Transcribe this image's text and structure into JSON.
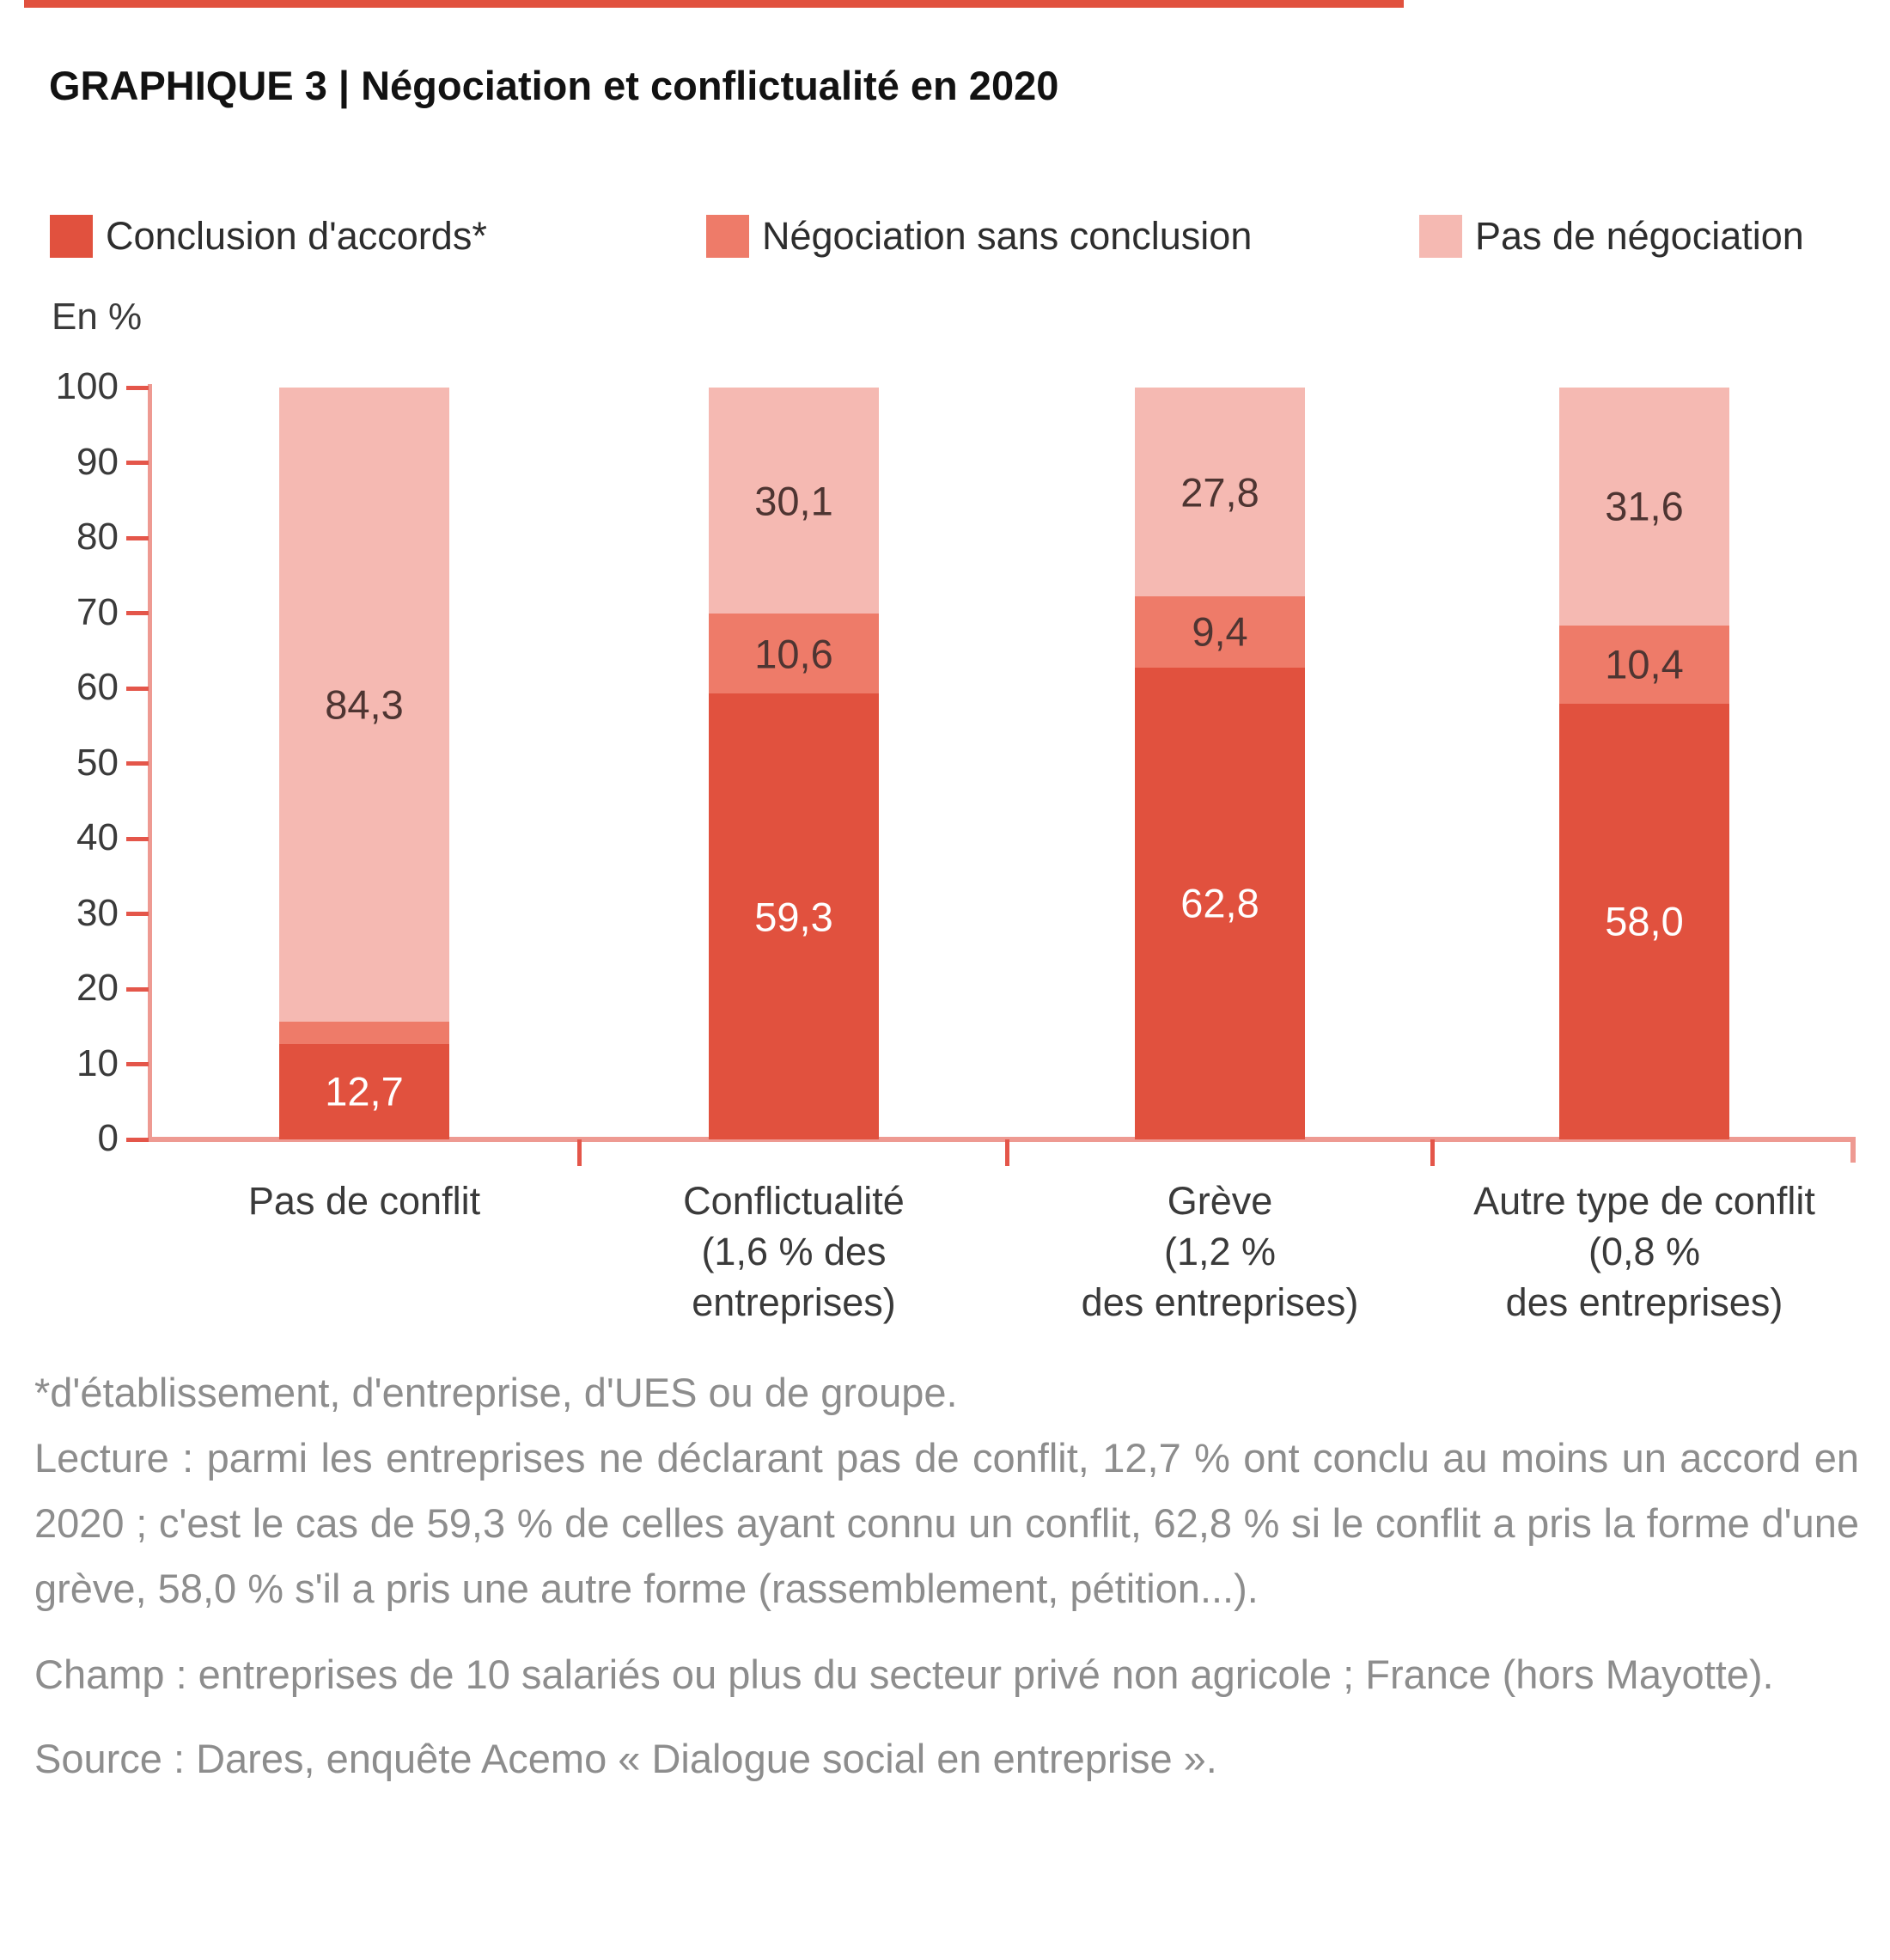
{
  "title": "GRAPHIQUE 3 | Négociation et conflictualité en 2020",
  "accent_colors": {
    "dark_red": "#e1513e",
    "coral": "#ee7b69",
    "pink": "#f5b9b2",
    "axis_line": "#ee9a92",
    "tick_red": "#e4564a",
    "dark_label": "#4e3532",
    "white_label": "#ffffff"
  },
  "legend": [
    {
      "label": "Conclusion d'accords*",
      "color": "#e1513e"
    },
    {
      "label": "Négociation sans conclusion",
      "color": "#ee7b69"
    },
    {
      "label": "Pas de négociation",
      "color": "#f5b9b2"
    }
  ],
  "chart_data": {
    "type": "bar",
    "stacked": true,
    "title": "GRAPHIQUE 3 | Négociation et conflictualité en 2020",
    "y_unit": "En %",
    "ylim": [
      0,
      100
    ],
    "yticks": [
      0,
      10,
      20,
      30,
      40,
      50,
      60,
      70,
      80,
      90,
      100
    ],
    "grid": false,
    "legend_position": "top",
    "categories": [
      [
        "Pas de conflit"
      ],
      [
        "Conflictualité",
        "(1,6 % des",
        "entreprises)"
      ],
      [
        "Grève",
        "(1,2 %",
        "des entreprises)"
      ],
      [
        "Autre type de conflit",
        "(0,8 %",
        "des entreprises)"
      ]
    ],
    "series": [
      {
        "name": "Conclusion d'accords*",
        "color": "#e1513e",
        "values": [
          12.7,
          59.3,
          62.8,
          58.0
        ],
        "labels": [
          "12,7",
          "59,3",
          "62,8",
          "58,0"
        ],
        "label_color": "#ffffff"
      },
      {
        "name": "Négociation sans conclusion",
        "color": "#ee7b69",
        "values": [
          3.0,
          10.6,
          9.4,
          10.4
        ],
        "labels": [
          "3,0",
          "10,6",
          "9,4",
          "10,4"
        ],
        "label_color": "#4e3532"
      },
      {
        "name": "Pas de négociation",
        "color": "#f5b9b2",
        "values": [
          84.3,
          30.1,
          27.8,
          31.6
        ],
        "labels": [
          "84,3",
          "30,1",
          "27,8",
          "31,6"
        ],
        "label_color": "#4e3532"
      }
    ]
  },
  "notes": {
    "footnote": "*d'établissement, d'entreprise, d'UES ou de groupe.",
    "lecture": "Lecture : parmi les entreprises ne déclarant pas de conflit, 12,7 % ont conclu au moins un accord en 2020 ; c'est le cas de 59,3 % de celles ayant connu un conflit, 62,8 % si le conflit a pris la forme d'une grève, 58,0 % s'il a pris une autre forme (rassemblement, pétition...).",
    "champ": "Champ : entreprises de 10 salariés ou plus du secteur privé non agricole ; France (hors Mayotte).",
    "source": "Source : Dares, enquête Acemo « Dialogue social en entreprise »."
  }
}
